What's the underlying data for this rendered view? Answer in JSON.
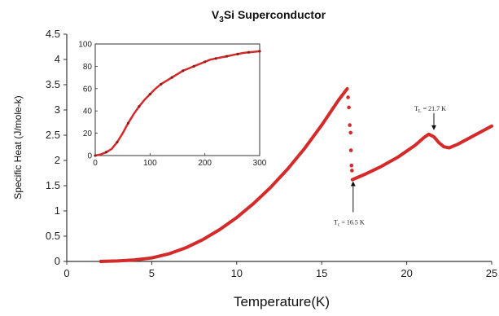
{
  "chart_data": {
    "type": "line",
    "title": {
      "pre": "V",
      "sub": "3",
      "post": "Si Superconductor"
    },
    "xlabel": "Temperature(K)",
    "ylabel": "Specific Heat (J/mole-k)",
    "xlim": [
      0,
      25
    ],
    "ylim": [
      0,
      4.5
    ],
    "x_ticks": [
      "0",
      "5",
      "10",
      "15",
      "20",
      "25"
    ],
    "y_ticks": [
      "0",
      "0.5",
      "1",
      "1.5",
      "2",
      "2.5",
      "3",
      "3.5",
      "4",
      "4.5"
    ],
    "grid": false,
    "series_color": "#d42a2a",
    "main_curve": {
      "x": [
        2,
        3,
        4,
        5,
        6,
        7,
        8,
        9,
        10,
        11,
        12,
        13,
        14,
        15,
        16,
        16.5
      ],
      "y": [
        0.0,
        0.01,
        0.03,
        0.07,
        0.15,
        0.27,
        0.43,
        0.63,
        0.87,
        1.15,
        1.47,
        1.83,
        2.24,
        2.7,
        3.2,
        3.42
      ]
    },
    "transition_points": {
      "x": [
        16.55,
        16.6,
        16.65,
        16.7,
        16.72,
        16.75,
        16.78
      ],
      "y": [
        3.25,
        3.05,
        2.7,
        2.55,
        2.2,
        1.9,
        1.8
      ]
    },
    "upper_curve": {
      "x": [
        16.8,
        17.5,
        18.5,
        19.5,
        20.5,
        21.0,
        21.3,
        21.6,
        21.9,
        22.2,
        22.5,
        23.0,
        24.0,
        25.0
      ],
      "y": [
        1.62,
        1.72,
        1.88,
        2.07,
        2.3,
        2.45,
        2.52,
        2.47,
        2.35,
        2.27,
        2.25,
        2.32,
        2.5,
        2.68
      ]
    },
    "annotations": [
      {
        "main": "T",
        "sub": "L",
        "text": " = 21.7 K",
        "x": 21.6,
        "y": 2.55
      },
      {
        "main": "T",
        "sub": "c",
        "text": " = 16.5 K",
        "x": 16.85,
        "y": 1.62
      }
    ],
    "inset": {
      "xlim": [
        0,
        300
      ],
      "ylim": [
        0,
        100
      ],
      "x_ticks": [
        "0",
        "100",
        "200",
        "300"
      ],
      "y_ticks": [
        "0",
        "20",
        "40",
        "60",
        "80",
        "100"
      ],
      "x": [
        0,
        10,
        20,
        30,
        40,
        50,
        60,
        70,
        80,
        90,
        100,
        110,
        120,
        130,
        140,
        150,
        160,
        170,
        180,
        190,
        200,
        210,
        220,
        230,
        240,
        250,
        260,
        270,
        280,
        290,
        300
      ],
      "y": [
        0,
        1,
        3,
        6,
        12,
        20,
        29,
        37,
        44,
        50,
        55,
        60,
        64,
        67,
        70,
        73,
        76,
        78,
        80,
        82,
        84,
        86,
        87,
        88,
        89,
        90,
        91,
        92,
        92.5,
        93,
        93.5
      ]
    }
  }
}
